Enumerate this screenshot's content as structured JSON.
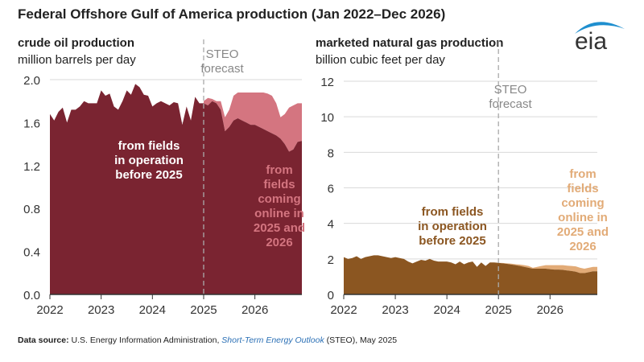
{
  "title": "Federal Offshore Gulf of America production (Jan 2022–Dec 2026)",
  "logo_text": "eia",
  "footnote": {
    "label": "Data source:",
    "text1": " U.S. Energy Information Administration, ",
    "link": "Short-Term Energy Outlook",
    "text2": " (STEO), May 2025"
  },
  "colors": {
    "oil_existing": "#7a2431",
    "oil_new": "#d47580",
    "gas_existing": "#8b5621",
    "gas_new": "#e2ab77",
    "grid": "#d9d9d9",
    "logo": "#1f8fcf"
  },
  "chart_data": [
    {
      "type": "area",
      "title": "crude oil production",
      "ylabel": "million barrels per day",
      "forecast_label": [
        "STEO",
        "forecast"
      ],
      "forecast_start": "2025-01",
      "x_start": "2022-01",
      "x_end": "2026-12",
      "xticks": [
        "2022",
        "2023",
        "2024",
        "2025",
        "2026"
      ],
      "yticks": [
        "0.0",
        "0.4",
        "0.8",
        "1.2",
        "1.6",
        "2.0"
      ],
      "ylim": [
        0,
        2.0
      ],
      "grid": true,
      "series": [
        {
          "name": "from fields in operation before 2025",
          "label_lines": [
            "from fields",
            "in operation",
            "before 2025"
          ],
          "values": [
            1.68,
            1.62,
            1.7,
            1.74,
            1.6,
            1.72,
            1.72,
            1.75,
            1.8,
            1.78,
            1.78,
            1.78,
            1.9,
            1.85,
            1.87,
            1.75,
            1.72,
            1.8,
            1.9,
            1.86,
            1.96,
            1.93,
            1.86,
            1.85,
            1.75,
            1.78,
            1.8,
            1.78,
            1.76,
            1.79,
            1.78,
            1.58,
            1.75,
            1.62,
            1.84,
            1.78,
            1.78,
            1.76,
            1.8,
            1.78,
            1.72,
            1.52,
            1.56,
            1.62,
            1.64,
            1.62,
            1.6,
            1.58,
            1.58,
            1.56,
            1.54,
            1.52,
            1.5,
            1.48,
            1.45,
            1.4,
            1.33,
            1.35,
            1.42,
            1.43
          ]
        },
        {
          "name": "from fields coming online in 2025 and 2026",
          "label_lines": [
            "from",
            "fields",
            "coming",
            "online in",
            "2025 and",
            "2026"
          ],
          "total_values": [
            1.8,
            1.83,
            1.82,
            1.8,
            1.8,
            1.65,
            1.72,
            1.85,
            1.88,
            1.88,
            1.88,
            1.88,
            1.88,
            1.88,
            1.88,
            1.87,
            1.85,
            1.78,
            1.65,
            1.68,
            1.74,
            1.76,
            1.78,
            1.78
          ]
        }
      ]
    },
    {
      "type": "area",
      "title": "marketed natural gas production",
      "ylabel": "billion cubic feet per day",
      "forecast_label": [
        "STEO",
        "forecast"
      ],
      "forecast_start": "2025-01",
      "x_start": "2022-01",
      "x_end": "2026-12",
      "xticks": [
        "2022",
        "2023",
        "2024",
        "2025",
        "2026"
      ],
      "yticks": [
        "0",
        "2",
        "4",
        "6",
        "8",
        "10",
        "12"
      ],
      "ylim": [
        0,
        12
      ],
      "grid": true,
      "series": [
        {
          "name": "from fields in operation before 2025",
          "label_lines": [
            "from fields",
            "in operation",
            "before 2025"
          ],
          "values": [
            2.1,
            2.0,
            2.05,
            2.15,
            2.0,
            2.1,
            2.15,
            2.2,
            2.2,
            2.15,
            2.1,
            2.05,
            2.1,
            2.05,
            2.0,
            1.85,
            1.75,
            1.85,
            1.95,
            1.9,
            2.0,
            1.9,
            1.85,
            1.85,
            1.85,
            1.8,
            1.7,
            1.85,
            1.7,
            1.8,
            1.85,
            1.55,
            1.8,
            1.6,
            1.8,
            1.8,
            1.78,
            1.75,
            1.72,
            1.68,
            1.65,
            1.6,
            1.55,
            1.5,
            1.45,
            1.45,
            1.45,
            1.45,
            1.42,
            1.4,
            1.4,
            1.38,
            1.35,
            1.32,
            1.28,
            1.2,
            1.2,
            1.25,
            1.3,
            1.3
          ]
        },
        {
          "name": "from fields coming online in 2025 and 2026",
          "label_lines": [
            "from",
            "fields",
            "coming",
            "online in",
            "2025 and",
            "2026"
          ],
          "total_values": [
            1.78,
            1.77,
            1.75,
            1.73,
            1.7,
            1.68,
            1.65,
            1.6,
            1.5,
            1.55,
            1.6,
            1.65,
            1.65,
            1.65,
            1.65,
            1.65,
            1.62,
            1.6,
            1.58,
            1.5,
            1.45,
            1.5,
            1.55,
            1.55
          ]
        }
      ]
    }
  ]
}
